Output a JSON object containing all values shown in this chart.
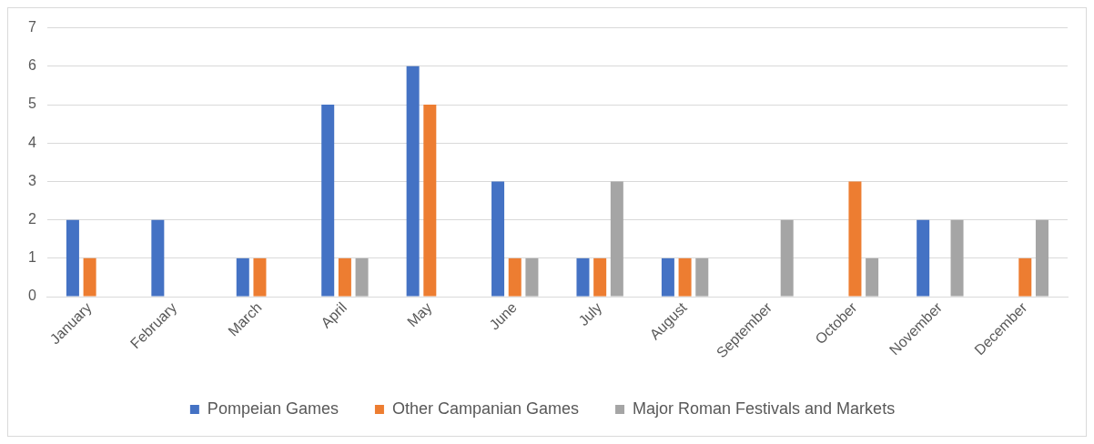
{
  "chart_data": {
    "type": "bar",
    "categories": [
      "January",
      "February",
      "March",
      "April",
      "May",
      "June",
      "July",
      "August",
      "September",
      "October",
      "November",
      "December"
    ],
    "series": [
      {
        "name": "Pompeian Games",
        "color": "#4472c4",
        "values": [
          2,
          2,
          1,
          5,
          6,
          3,
          1,
          1,
          0,
          0,
          2,
          0
        ]
      },
      {
        "name": "Other Campanian Games",
        "color": "#ed7d31",
        "values": [
          1,
          0,
          1,
          1,
          5,
          1,
          1,
          1,
          0,
          3,
          0,
          1
        ]
      },
      {
        "name": "Major Roman Festivals and Markets",
        "color": "#a5a5a5",
        "values": [
          0,
          0,
          0,
          1,
          0,
          1,
          3,
          1,
          2,
          1,
          2,
          2
        ]
      }
    ],
    "ylim": [
      0,
      7
    ],
    "yticks": [
      0,
      1,
      2,
      3,
      4,
      5,
      6,
      7
    ],
    "grid": "y",
    "legend": "bottom"
  }
}
